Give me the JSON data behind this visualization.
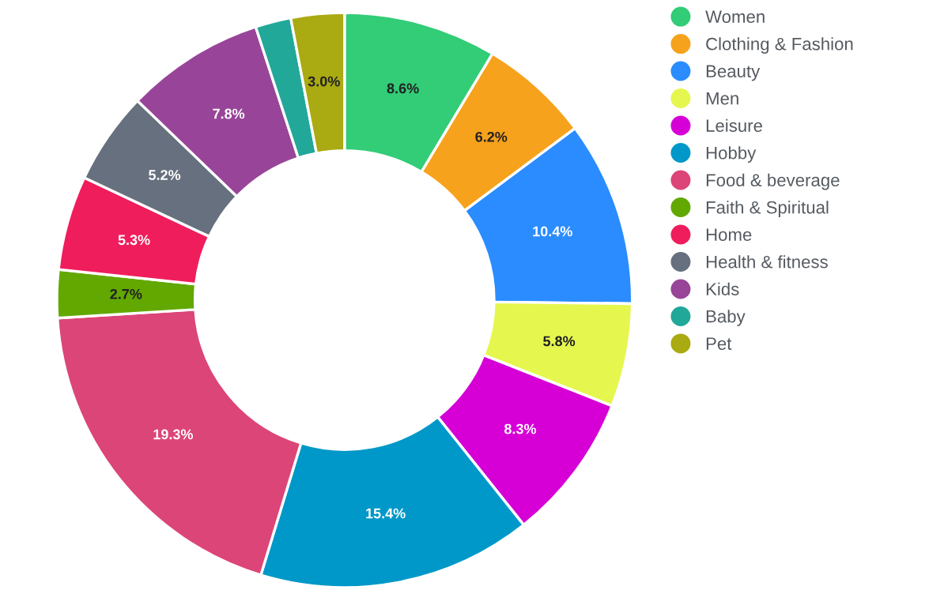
{
  "chart_data": {
    "type": "donut",
    "categories": [
      "Women",
      "Clothing & Fashion",
      "Beauty",
      "Men",
      "Leisure",
      "Hobby",
      "Food & beverage",
      "Faith & Spiritual",
      "Home",
      "Health & fitness",
      "Kids",
      "Baby",
      "Pet"
    ],
    "values": [
      8.6,
      6.2,
      10.4,
      5.8,
      8.3,
      15.4,
      19.3,
      2.7,
      5.3,
      5.2,
      7.8,
      2.0,
      3.0
    ],
    "colors": [
      "#33cc77",
      "#f7a21c",
      "#2a8cff",
      "#e5f74f",
      "#d600d6",
      "#0098c8",
      "#dc4577",
      "#62a800",
      "#ef1d5c",
      "#66707e",
      "#984599",
      "#22a899",
      "#aaaa12"
    ],
    "value_labels": [
      "8.6%",
      "6.2%",
      "10.4%",
      "5.8%",
      "8.3%",
      "15.4%",
      "19.3%",
      "2.7%",
      "5.3%",
      "5.2%",
      "7.8%",
      null,
      "3.0%"
    ],
    "legend": "right"
  }
}
